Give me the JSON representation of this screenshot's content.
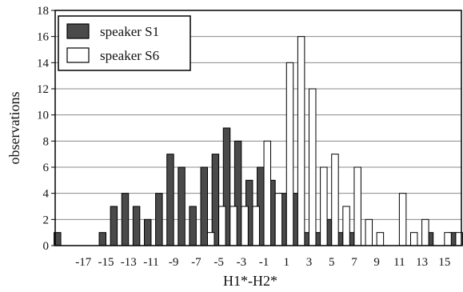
{
  "chart_data": {
    "type": "bar",
    "title": "",
    "xlabel": "H1*-H2*",
    "ylabel": "observations",
    "x": [
      -19,
      -18,
      -17,
      -16,
      -15,
      -14,
      -13,
      -12,
      -11,
      -10,
      -9,
      -8,
      -7,
      -6,
      -5,
      -4,
      -3,
      -2,
      -1,
      0,
      1,
      2,
      3,
      4,
      5,
      6,
      7,
      8,
      9,
      10,
      11,
      12,
      13,
      14,
      15,
      16
    ],
    "xticks": [
      -17,
      -15,
      -13,
      -11,
      -9,
      -7,
      -5,
      -3,
      -1,
      1,
      3,
      5,
      7,
      9,
      11,
      13,
      15
    ],
    "xlim": [
      -19.5,
      16.5
    ],
    "ylim": [
      0,
      18
    ],
    "yticks": [
      0,
      2,
      4,
      6,
      8,
      10,
      12,
      14,
      16,
      18
    ],
    "grid": true,
    "legend_position": "top-left",
    "series": [
      {
        "name": "speaker S1",
        "color": "#4a4a4a",
        "values": [
          1,
          0,
          0,
          0,
          1,
          3,
          4,
          3,
          2,
          4,
          7,
          6,
          3,
          6,
          7,
          9,
          8,
          5,
          6,
          5,
          4,
          4,
          1,
          1,
          2,
          1,
          1,
          0,
          0,
          0,
          0,
          0,
          0,
          1,
          0,
          1
        ]
      },
      {
        "name": "speaker S6",
        "color": "#ffffff",
        "values": [
          0,
          0,
          0,
          0,
          0,
          0,
          0,
          0,
          0,
          0,
          0,
          0,
          0,
          1,
          3,
          3,
          3,
          3,
          8,
          4,
          14,
          16,
          12,
          6,
          7,
          3,
          6,
          2,
          1,
          0,
          4,
          1,
          2,
          0,
          1,
          1
        ]
      }
    ]
  }
}
